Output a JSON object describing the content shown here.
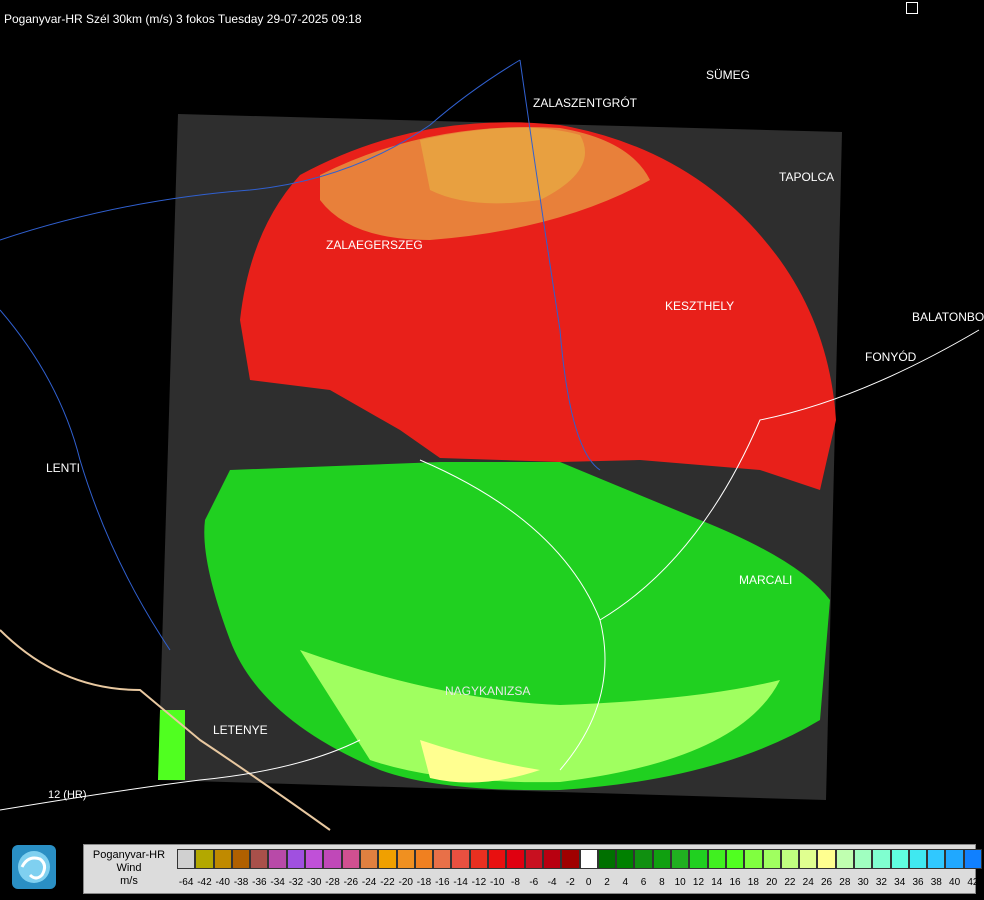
{
  "header": {
    "title": "Poganyvar-HR Szél 30km (m/s) 3 fokos Tuesday 29-07-2025 09:18"
  },
  "map": {
    "cities": [
      {
        "name": "SÜMEG",
        "id": "sumeg"
      },
      {
        "name": "ZALASZENTGRÓT",
        "id": "zalaszentgrot"
      },
      {
        "name": "TAPOLCA",
        "id": "tapolca"
      },
      {
        "name": "ZALAEGERSZEG",
        "id": "zalaegerszeg"
      },
      {
        "name": "KESZTHELY",
        "id": "keszthely"
      },
      {
        "name": "BALATONBO",
        "id": "balatonbo"
      },
      {
        "name": "FONYÓD",
        "id": "fonyod"
      },
      {
        "name": "LENTI",
        "id": "lenti"
      },
      {
        "name": "MARCALI",
        "id": "marcali"
      },
      {
        "name": "NAGYKANIZSA",
        "id": "nagykanizsa"
      },
      {
        "name": "LETENYE",
        "id": "letenye"
      }
    ],
    "road_label": "12 (HR)"
  },
  "legend": {
    "name_line1": "Poganyvar-HR",
    "name_line2": "Wind",
    "unit": "m/s",
    "colors": [
      "#d0d0d0",
      "#b3a800",
      "#c08a00",
      "#b06000",
      "#a8504a",
      "#b84aa8",
      "#a050e0",
      "#c050d8",
      "#c048b8",
      "#d05090",
      "#e08040",
      "#f0a000",
      "#f09020",
      "#f08020",
      "#e87048",
      "#e85040",
      "#e83020",
      "#e81010",
      "#e00010",
      "#c81020",
      "#b80010",
      "#a00000",
      "#ffffff",
      "#007000",
      "#008000",
      "#109010",
      "#10a010",
      "#20b020",
      "#20d020",
      "#40f020",
      "#50ff20",
      "#80ff40",
      "#a0ff60",
      "#c0ff80",
      "#e0ff90",
      "#ffff90",
      "#c0ffb0",
      "#a0ffc0",
      "#80ffd0",
      "#60ffe0",
      "#40e8f0",
      "#30c8ff",
      "#20a8ff",
      "#1080ff",
      "#0050ff",
      "#0020e0"
    ],
    "ticks": [
      "-64",
      "-42",
      "-40",
      "-38",
      "-36",
      "-34",
      "-32",
      "-30",
      "-28",
      "-26",
      "-24",
      "-22",
      "-20",
      "-18",
      "-16",
      "-14",
      "-12",
      "-10",
      "-8",
      "-6",
      "-4",
      "-2",
      "0",
      "2",
      "4",
      "6",
      "8",
      "10",
      "12",
      "14",
      "16",
      "18",
      "20",
      "22",
      "24",
      "26",
      "28",
      "30",
      "32",
      "34",
      "36",
      "38",
      "40",
      "42"
    ]
  }
}
